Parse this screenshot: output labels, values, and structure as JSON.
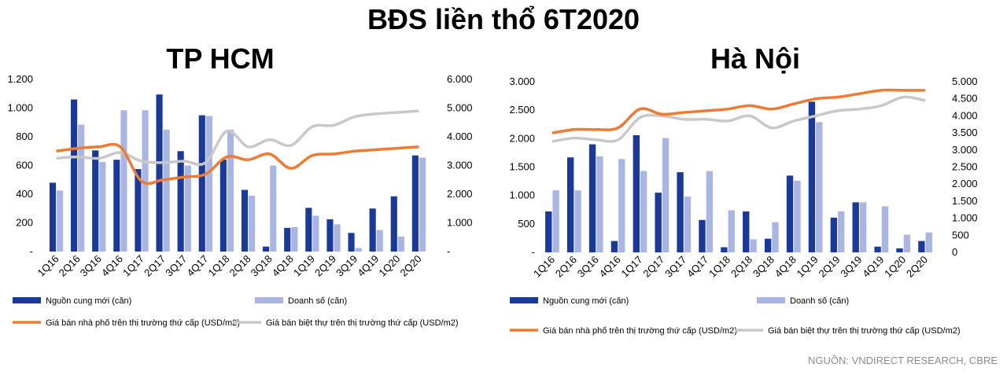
{
  "page": {
    "title": "BĐS liền thổ 6T2020",
    "source": "NGUỒN: VNDIRECT RESEARCH, CBRE"
  },
  "colors": {
    "supply": "#1a3a9b",
    "sales": "#a9b6e3",
    "townhouse": "#ee7b30",
    "villa": "#c8c8c8"
  },
  "chart_data": [
    {
      "id": "hcm",
      "type": "bar",
      "title": "TP HCM",
      "categories": [
        "1Q16",
        "2Q16",
        "3Q16",
        "4Q16",
        "1Q17",
        "2Q17",
        "3Q17",
        "4Q17",
        "1Q18",
        "2Q18",
        "3Q18",
        "4Q18",
        "1Q19",
        "2Q19",
        "3Q19",
        "4Q19",
        "1Q20",
        "2Q20"
      ],
      "ylim": [
        0,
        1200
      ],
      "y_ticks": [
        0,
        200,
        400,
        600,
        800,
        1000,
        1200
      ],
      "y_tick_labels": [
        "-",
        "200",
        "400",
        "600",
        "800",
        "1.000",
        "1.200"
      ],
      "y2lim": [
        0,
        6000
      ],
      "y2_ticks": [
        0,
        1000,
        2000,
        3000,
        4000,
        5000,
        6000
      ],
      "y2_tick_labels": [
        "-",
        "1.000",
        "2.000",
        "3.000",
        "4.000",
        "5.000",
        "6.000"
      ],
      "series": [
        {
          "name": "Nguồn cung mới (căn)",
          "kind": "bar",
          "axis": "left",
          "values": [
            480,
            1060,
            705,
            640,
            575,
            1095,
            700,
            950,
            640,
            430,
            35,
            165,
            305,
            225,
            130,
            300,
            385,
            670
          ]
        },
        {
          "name": "Doanh số (căn)",
          "kind": "bar",
          "axis": "left",
          "values": [
            425,
            885,
            625,
            985,
            985,
            850,
            600,
            945,
            850,
            390,
            600,
            170,
            250,
            190,
            25,
            150,
            105,
            655
          ]
        },
        {
          "name": "Giá bán nhà phố trên thị trường thứ cấp (USD/m2)",
          "kind": "line",
          "axis": "right",
          "values": [
            3500,
            3600,
            3650,
            3650,
            2450,
            2500,
            2600,
            2700,
            3300,
            3200,
            3400,
            2900,
            3350,
            3400,
            3500,
            3550,
            3600,
            3650
          ]
        },
        {
          "name": "Giá bán biệt thự trên thị trường thứ cấp (USD/m2)",
          "kind": "line",
          "axis": "right",
          "values": [
            3250,
            3300,
            3250,
            3450,
            3150,
            3100,
            3150,
            3100,
            4200,
            3650,
            3900,
            3700,
            4350,
            4400,
            4700,
            4800,
            4850,
            4900
          ]
        }
      ],
      "legend": {
        "supply": "Nguồn cung mới (căn)",
        "sales": "Doanh số (căn)",
        "townhouse": "Giá bán nhà phố trên thị trường thứ cấp (USD/m2)",
        "villa": "Giá bán biệt thự trên thị trường thứ cấp (USD/m2)"
      }
    },
    {
      "id": "hn",
      "type": "bar",
      "title": "Hà Nội",
      "categories": [
        "1Q16",
        "2Q16",
        "3Q16",
        "4Q16",
        "1Q17",
        "2Q17",
        "3Q17",
        "4Q17",
        "1Q18",
        "2Q18",
        "3Q18",
        "4Q18",
        "1Q19",
        "2Q19",
        "3Q19",
        "4Q19",
        "1Q20",
        "2Q20"
      ],
      "ylim": [
        0,
        3000
      ],
      "y_ticks": [
        0,
        500,
        1000,
        1500,
        2000,
        2500,
        3000
      ],
      "y_tick_labels": [
        "-",
        "500",
        "1.000",
        "1.500",
        "2.000",
        "2.500",
        "3.000"
      ],
      "y2lim": [
        0,
        5000
      ],
      "y2_ticks": [
        0,
        500,
        1000,
        1500,
        2000,
        2500,
        3000,
        3500,
        4000,
        4500,
        5000
      ],
      "y2_tick_labels": [
        "0",
        "500",
        "1.000",
        "1.500",
        "2.000",
        "2.500",
        "3.000",
        "3.500",
        "4.000",
        "4.500",
        "5.000"
      ],
      "series": [
        {
          "name": "Nguồn cung mới (căn)",
          "kind": "bar",
          "axis": "left",
          "values": [
            720,
            1670,
            1900,
            200,
            2060,
            1050,
            1410,
            570,
            90,
            720,
            240,
            1350,
            2650,
            610,
            880,
            100,
            70,
            200
          ]
        },
        {
          "name": "Doanh số (căn)",
          "kind": "bar",
          "axis": "left",
          "values": [
            1090,
            1090,
            1690,
            1640,
            1430,
            2010,
            980,
            1430,
            740,
            230,
            530,
            1260,
            2290,
            720,
            880,
            810,
            310,
            350
          ]
        },
        {
          "name": "Giá bán nhà phố trên thị trường thứ cấp (USD/m2)",
          "kind": "line",
          "axis": "right",
          "values": [
            3500,
            3600,
            3600,
            3650,
            4200,
            4050,
            4100,
            4150,
            4200,
            4300,
            4200,
            4350,
            4500,
            4550,
            4650,
            4750,
            4750,
            4750
          ]
        },
        {
          "name": "Giá bán biệt thự trên thị trường thứ cấp (USD/m2)",
          "kind": "line",
          "axis": "right",
          "values": [
            3250,
            3350,
            3300,
            3300,
            3950,
            4000,
            3900,
            3900,
            3850,
            4000,
            3650,
            3850,
            4000,
            4150,
            4200,
            4300,
            4550,
            4450
          ]
        }
      ],
      "legend": {
        "supply": "Nguồn cung mới (căn)",
        "sales": "Doanh số (căn)",
        "townhouse": "Giá bán nhà phố trên thị trường thứ cấp (USD/m2)",
        "villa": "Giá bán biệt thự trên thị trường thứ cấp (USD/m2)"
      }
    }
  ]
}
